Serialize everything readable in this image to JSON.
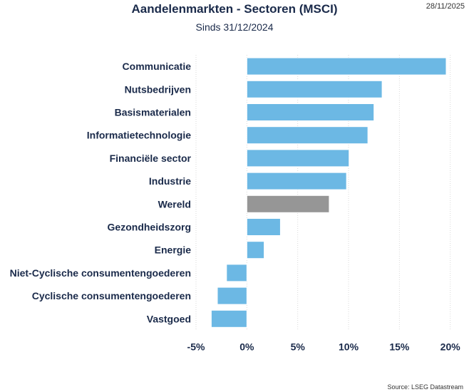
{
  "header": {
    "date": "28/11/2025",
    "source": "Source: LSEG Datastream"
  },
  "chart_data": {
    "type": "bar",
    "orientation": "horizontal",
    "title": "Aandelenmarkten - Sectoren (MSCI)",
    "subtitle": "Sinds 31/12/2024",
    "categories": [
      "Communicatie",
      "Nutsbedrijven",
      "Basismaterialen",
      "Informatietechnologie",
      "Financiële sector",
      "Industrie",
      "Wereld",
      "Gezondheidszorg",
      "Energie",
      "Niet-Cyclische consumentengoederen",
      "Cyclische consumentengoederen",
      "Vastgoed"
    ],
    "values": [
      19.6,
      13.3,
      12.5,
      11.9,
      10.05,
      9.8,
      8.1,
      3.3,
      1.7,
      -2.0,
      -2.9,
      -3.5
    ],
    "highlight": "Wereld",
    "colors": {
      "bar": "#6cb8e4",
      "highlight": "#969696",
      "grid": "#d9d9d9"
    },
    "xlim": [
      -5,
      20
    ],
    "xticks": [
      -5,
      0,
      5,
      10,
      15,
      20
    ],
    "xtick_labels": [
      "-5%",
      "0%",
      "5%",
      "10%",
      "15%",
      "20%"
    ],
    "xlabel": "",
    "ylabel": "",
    "grid": true,
    "legend": "none"
  }
}
